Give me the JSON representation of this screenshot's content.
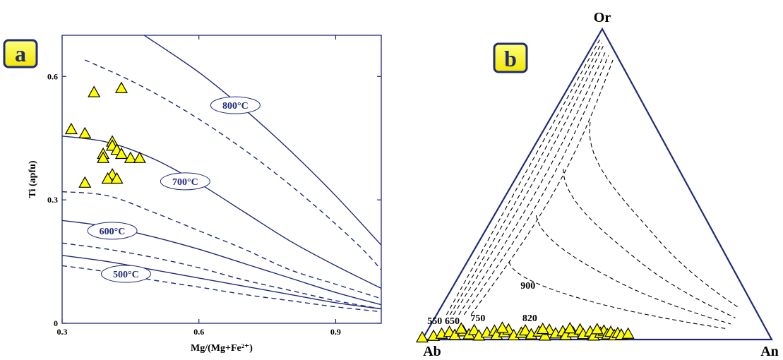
{
  "colors": {
    "frame": "#1f2a78",
    "curve": "#1f2a78",
    "dashed_ternary": "#000000",
    "point_fill": "#ffff00",
    "point_stroke": "#000000",
    "badge_fill": "#ffff00",
    "badge_border": "#1f2a78",
    "badge_text": "#1f2a78"
  },
  "chart_data": [
    {
      "panel": "a",
      "type": "scatter",
      "xlabel": "Mg/(Mg+Fe²⁺)",
      "ylabel": "Ti (apfu)",
      "xlim": [
        0.3,
        1.0
      ],
      "ylim": [
        0,
        0.7
      ],
      "xticks": [
        "0.3",
        "0.6",
        "0.9"
      ],
      "yticks": [
        "0",
        "0.3",
        "0.6"
      ],
      "grid": false,
      "points": [
        {
          "x": 0.37,
          "y": 0.56
        },
        {
          "x": 0.43,
          "y": 0.57
        },
        {
          "x": 0.32,
          "y": 0.47
        },
        {
          "x": 0.35,
          "y": 0.46
        },
        {
          "x": 0.41,
          "y": 0.44
        },
        {
          "x": 0.41,
          "y": 0.43
        },
        {
          "x": 0.42,
          "y": 0.42
        },
        {
          "x": 0.39,
          "y": 0.41
        },
        {
          "x": 0.39,
          "y": 0.4
        },
        {
          "x": 0.43,
          "y": 0.41
        },
        {
          "x": 0.45,
          "y": 0.4
        },
        {
          "x": 0.47,
          "y": 0.4
        },
        {
          "x": 0.41,
          "y": 0.36
        },
        {
          "x": 0.4,
          "y": 0.35
        },
        {
          "x": 0.42,
          "y": 0.35
        },
        {
          "x": 0.35,
          "y": 0.34
        }
      ],
      "isotherms": [
        {
          "label": "800°C",
          "solid": [
            [
              0.48,
              0.7
            ],
            [
              0.6,
              0.61
            ],
            [
              0.7,
              0.52
            ],
            [
              0.8,
              0.42
            ],
            [
              0.9,
              0.31
            ],
            [
              1.0,
              0.19
            ]
          ],
          "dashed": [
            [
              0.35,
              0.64
            ],
            [
              0.45,
              0.59
            ],
            [
              0.55,
              0.53
            ],
            [
              0.65,
              0.46
            ],
            [
              0.75,
              0.38
            ],
            [
              0.85,
              0.29
            ],
            [
              0.95,
              0.19
            ],
            [
              1.0,
              0.13
            ]
          ]
        },
        {
          "label": "700°C",
          "solid": [
            [
              0.3,
              0.455
            ],
            [
              0.4,
              0.44
            ],
            [
              0.5,
              0.4
            ],
            [
              0.6,
              0.34
            ],
            [
              0.7,
              0.27
            ],
            [
              0.8,
              0.2
            ],
            [
              0.9,
              0.14
            ],
            [
              1.0,
              0.085
            ]
          ],
          "dashed": [
            [
              0.3,
              0.32
            ],
            [
              0.4,
              0.31
            ],
            [
              0.5,
              0.27
            ],
            [
              0.6,
              0.225
            ],
            [
              0.7,
              0.18
            ],
            [
              0.8,
              0.13
            ],
            [
              0.9,
              0.095
            ],
            [
              1.0,
              0.06
            ]
          ]
        },
        {
          "label": "600°C",
          "solid": [
            [
              0.3,
              0.25
            ],
            [
              0.4,
              0.235
            ],
            [
              0.5,
              0.21
            ],
            [
              0.6,
              0.18
            ],
            [
              0.7,
              0.145
            ],
            [
              0.8,
              0.11
            ],
            [
              0.9,
              0.075
            ],
            [
              1.0,
              0.045
            ]
          ],
          "dashed": [
            [
              0.3,
              0.195
            ],
            [
              0.4,
              0.18
            ],
            [
              0.5,
              0.16
            ],
            [
              0.6,
              0.135
            ],
            [
              0.7,
              0.105
            ],
            [
              0.8,
              0.08
            ],
            [
              0.9,
              0.055
            ],
            [
              1.0,
              0.035
            ]
          ]
        },
        {
          "label": "500°C",
          "solid": [
            [
              0.3,
              0.165
            ],
            [
              0.4,
              0.15
            ],
            [
              0.5,
              0.13
            ],
            [
              0.6,
              0.11
            ],
            [
              0.7,
              0.09
            ],
            [
              0.8,
              0.07
            ],
            [
              0.9,
              0.05
            ],
            [
              1.0,
              0.035
            ]
          ],
          "dashed": [
            [
              0.3,
              0.14
            ],
            [
              0.4,
              0.125
            ],
            [
              0.5,
              0.105
            ],
            [
              0.6,
              0.088
            ],
            [
              0.7,
              0.07
            ],
            [
              0.8,
              0.055
            ],
            [
              0.9,
              0.04
            ],
            [
              1.0,
              0.028
            ]
          ]
        }
      ],
      "labels": [
        "800°C",
        "700°C",
        "600°C",
        "500°C"
      ]
    },
    {
      "panel": "b",
      "type": "scatter",
      "diagram": "ternary",
      "vertices": {
        "top": "Or",
        "left": "Ab",
        "right": "An"
      },
      "isotherm_labels": [
        "550",
        "650",
        "750",
        "820",
        "900"
      ],
      "points_ab_an_or": [
        [
          100,
          0,
          0.0
        ],
        [
          97,
          3,
          0.5
        ],
        [
          95,
          5,
          1.2
        ],
        [
          93,
          7,
          1.8
        ],
        [
          91,
          9,
          0.8
        ],
        [
          89,
          11,
          2.0
        ],
        [
          87,
          13,
          1.0
        ],
        [
          86,
          14,
          2.4
        ],
        [
          84,
          16,
          0.6
        ],
        [
          82,
          18,
          1.6
        ],
        [
          80,
          20,
          2.2
        ],
        [
          79,
          21,
          0.9
        ],
        [
          77,
          23,
          1.7
        ],
        [
          76,
          24,
          2.6
        ],
        [
          74,
          26,
          0.7
        ],
        [
          72,
          28,
          1.5
        ],
        [
          71,
          29,
          2.3
        ],
        [
          69,
          31,
          1.0
        ],
        [
          67,
          33,
          1.9
        ],
        [
          65,
          35,
          0.6
        ],
        [
          64,
          36,
          2.5
        ],
        [
          62,
          38,
          1.3
        ],
        [
          60,
          40,
          2.0
        ],
        [
          59,
          41,
          0.8
        ],
        [
          57,
          43,
          1.7
        ],
        [
          55,
          45,
          2.6
        ],
        [
          54,
          46,
          1.1
        ],
        [
          52,
          48,
          1.9
        ],
        [
          51,
          49,
          0.6
        ],
        [
          49,
          51,
          1.5
        ],
        [
          48,
          52,
          2.2
        ],
        [
          47,
          53,
          1.0
        ],
        [
          46,
          54,
          1.8
        ],
        [
          45,
          55,
          0.7
        ],
        [
          44,
          56,
          1.4
        ],
        [
          43,
          57,
          0.9
        ],
        [
          41,
          59,
          1.2
        ],
        [
          90,
          10,
          2.9
        ],
        [
          78,
          22,
          3.2
        ],
        [
          66,
          34,
          2.8
        ],
        [
          58,
          42,
          3.0
        ],
        [
          50,
          50,
          2.7
        ]
      ]
    }
  ]
}
